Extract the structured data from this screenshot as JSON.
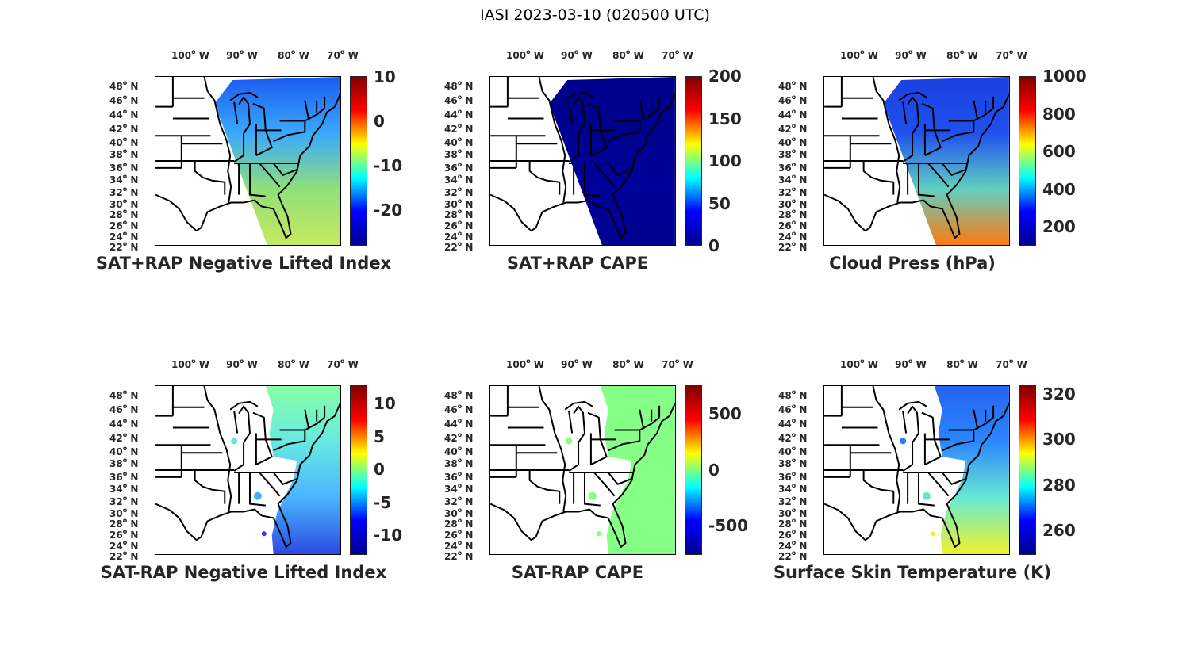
{
  "figure_title": "IASI 2023-03-10 (020500 UTC)",
  "lon_labels": [
    "100",
    "90",
    "80",
    "70"
  ],
  "lon_suffix": "W",
  "lat_labels": [
    "48",
    "46",
    "44",
    "42",
    "40",
    "38",
    "36",
    "34",
    "32",
    "30",
    "28",
    "26",
    "24",
    "22"
  ],
  "lat_suffix": "N",
  "colormap": [
    "#00008f",
    "#0000ff",
    "#00ffff",
    "#ffff00",
    "#ff0000",
    "#800000"
  ],
  "panels": [
    {
      "title": "SAT+RAP Negative Lifted Index",
      "range": [
        -28,
        10.2
      ],
      "ticks": [
        "10",
        "0",
        "-10",
        "-20"
      ],
      "tick_values": [
        10,
        0,
        -10,
        -20
      ],
      "swath": "full",
      "swath_colors": [
        "#1a5cf0",
        "#3aa8ff",
        "#8fe07a",
        "#c8e860"
      ]
    },
    {
      "title": "SAT+RAP CAPE",
      "range": [
        0,
        200
      ],
      "ticks": [
        "200",
        "150",
        "100",
        "50",
        "0"
      ],
      "tick_values": [
        200,
        150,
        100,
        50,
        0
      ],
      "swath": "full",
      "swath_colors": [
        "#00008f",
        "#00008f",
        "#00009a",
        "#00008f"
      ]
    },
    {
      "title": "Cloud Press (hPa)",
      "range": [
        100,
        1000
      ],
      "ticks": [
        "1000",
        "800",
        "600",
        "400",
        "200"
      ],
      "tick_values": [
        1000,
        800,
        600,
        400,
        200
      ],
      "swath": "full",
      "swath_colors": [
        "#1a40e0",
        "#2050f0",
        "#60d0c0",
        "#ff7a10"
      ]
    },
    {
      "title": "SAT-RAP Negative Lifted Index",
      "range": [
        -13,
        12.8
      ],
      "ticks": [
        "10",
        "5",
        "0",
        "-5",
        "-10"
      ],
      "tick_values": [
        10,
        5,
        0,
        -5,
        -10
      ],
      "swath": "east",
      "swath_colors": [
        "#80ffa0",
        "#60e8e0",
        "#40b0ff",
        "#2040e0"
      ]
    },
    {
      "title": "SAT-RAP CAPE",
      "range": [
        -760,
        755
      ],
      "ticks": [
        "500",
        "0",
        "-500"
      ],
      "tick_values": [
        500,
        0,
        -500
      ],
      "swath": "east",
      "swath_colors": [
        "#80ff80",
        "#80ff80",
        "#80ff80",
        "#80ff80"
      ]
    },
    {
      "title": "Surface Skin Temperature (K)",
      "range": [
        249,
        324
      ],
      "ticks": [
        "320",
        "300",
        "280",
        "260"
      ],
      "tick_values": [
        320,
        300,
        280,
        260
      ],
      "swath": "east",
      "swath_colors": [
        "#1a5cf0",
        "#2080ff",
        "#60e8d0",
        "#f0f020"
      ]
    }
  ]
}
